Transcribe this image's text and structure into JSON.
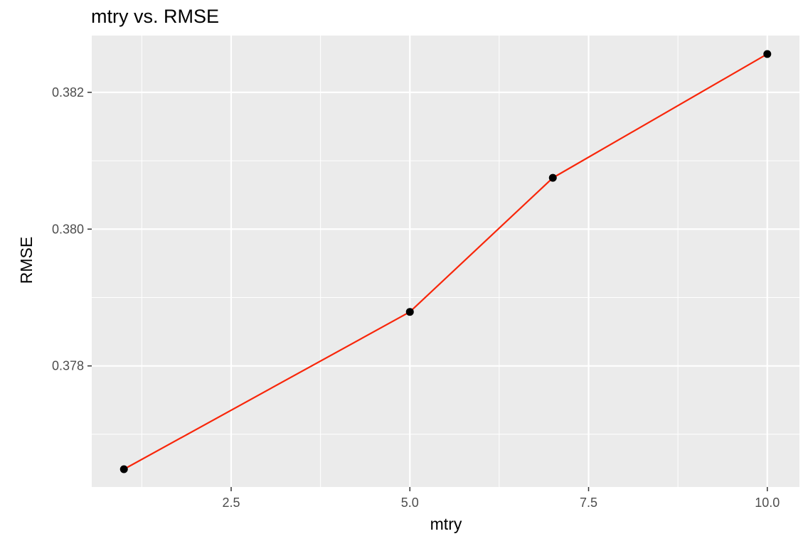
{
  "chart_data": {
    "type": "line",
    "title": "mtry vs. RMSE",
    "xlabel": "mtry",
    "ylabel": "RMSE",
    "x": [
      1,
      5,
      7,
      10
    ],
    "series": [
      {
        "values": [
          0.37649,
          0.37879,
          0.38075,
          0.38256
        ]
      }
    ],
    "xlim": [
      0.55,
      10.45
    ],
    "ylim": [
      0.37623,
      0.38283
    ],
    "xticks": [
      2.5,
      5.0,
      7.5,
      10.0
    ],
    "xtick_labels": [
      "2.5",
      "5.0",
      "7.5",
      "10.0"
    ],
    "yticks": [
      0.378,
      0.38,
      0.382
    ],
    "ytick_labels": [
      "0.378",
      "0.380",
      "0.382"
    ],
    "grid": true,
    "legend": "none",
    "colors": {
      "panel": "#ebebeb",
      "grid": "#ffffff",
      "line": "#f8260a",
      "point": "#000000",
      "tick_text": "#4d4d4d",
      "tick_mark": "#333333"
    }
  }
}
